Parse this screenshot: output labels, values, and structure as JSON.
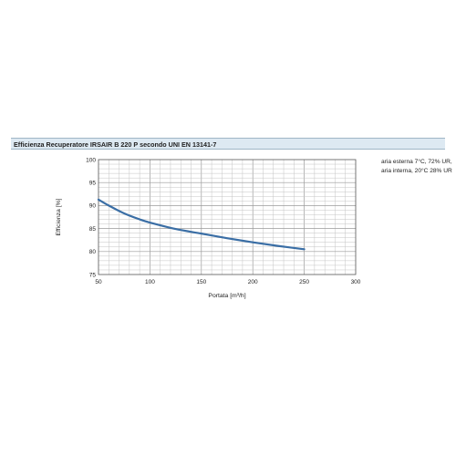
{
  "title": "Efficienza Recuperatore IRSAIR B 220 P secondo UNI EN 13141-7",
  "note": "aria esterna 7°C, 72% UR, aria interna, 20°C 28% UR",
  "chart_data": {
    "type": "line",
    "title": "Efficienza Recuperatore IRSAIR B 220 P secondo UNI EN 13141-7",
    "xlabel": "Portata [m³/h]",
    "ylabel": "Efficienza [%]",
    "xlim": [
      50,
      300
    ],
    "ylim": [
      75,
      100
    ],
    "xticks": [
      "50",
      "100",
      "150",
      "200",
      "250",
      "300"
    ],
    "yticks": [
      "75",
      "80",
      "85",
      "90",
      "95",
      "100"
    ],
    "grid": true,
    "series": [
      {
        "x": [
          50,
          60,
          75,
          90,
          100,
          125,
          150,
          175,
          200,
          225,
          250
        ],
        "y": [
          91.3,
          90.0,
          88.3,
          87.0,
          86.3,
          84.9,
          83.9,
          82.9,
          82.0,
          81.2,
          80.5
        ],
        "color": "#3a6ea5"
      }
    ]
  }
}
